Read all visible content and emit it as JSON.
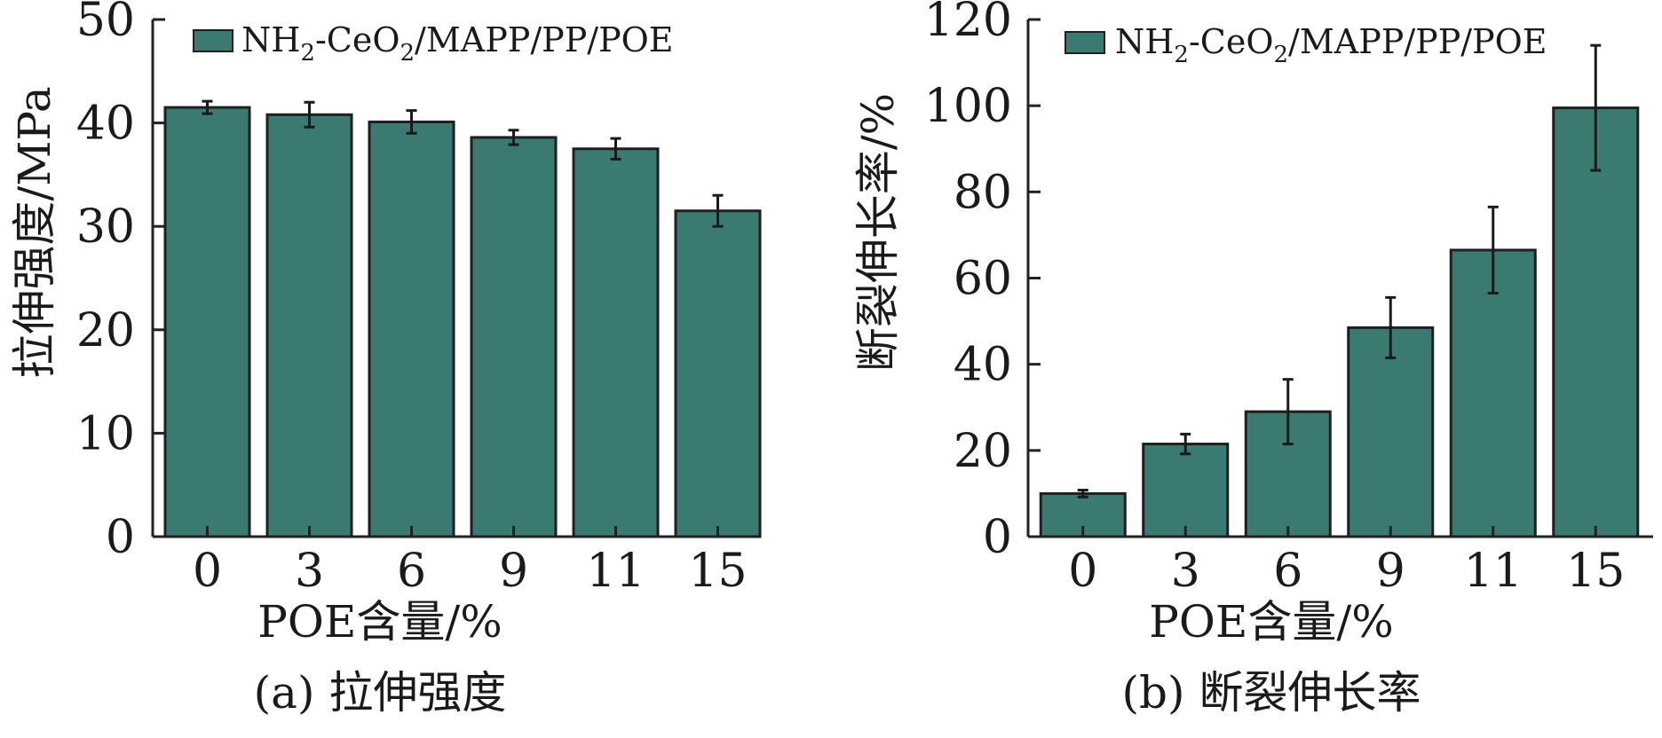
{
  "colors": {
    "bar_fill": "#3a7a70",
    "axis": "#222222",
    "text": "#1a1a1a"
  },
  "chart_data": [
    {
      "type": "bar",
      "caption": "(a) 拉伸强度",
      "xlabel": "POE含量/%",
      "ylabel": "拉伸强度/MPa",
      "categories": [
        "0",
        "3",
        "6",
        "9",
        "11",
        "15"
      ],
      "ylim": [
        0,
        50
      ],
      "yticks": [
        0,
        10,
        20,
        30,
        40,
        50
      ],
      "legend_position": "top-left",
      "series": [
        {
          "name_parts": {
            "a": "NH",
            "a_sub": "2",
            "b": "-CeO",
            "b_sub": "2",
            "c": "/MAPP/PP/POE"
          },
          "values": [
            41.5,
            40.8,
            40.1,
            38.6,
            37.5,
            31.5
          ],
          "errors": [
            0.6,
            1.2,
            1.1,
            0.7,
            1.0,
            1.5
          ]
        }
      ]
    },
    {
      "type": "bar",
      "caption": "(b) 断裂伸长率",
      "xlabel": "POE含量/%",
      "ylabel": "断裂伸长率/%",
      "categories": [
        "0",
        "3",
        "6",
        "9",
        "11",
        "15"
      ],
      "ylim": [
        0,
        120
      ],
      "yticks": [
        0,
        20,
        40,
        60,
        80,
        100,
        120
      ],
      "legend_position": "top-left",
      "series": [
        {
          "name_parts": {
            "a": "NH",
            "a_sub": "2",
            "b": "-CeO",
            "b_sub": "2",
            "c": "/MAPP/PP/POE"
          },
          "values": [
            10,
            21.5,
            29,
            48.5,
            66.5,
            99.5
          ],
          "errors": [
            0.8,
            2.3,
            7.5,
            7.0,
            10.0,
            14.5
          ]
        }
      ]
    }
  ]
}
